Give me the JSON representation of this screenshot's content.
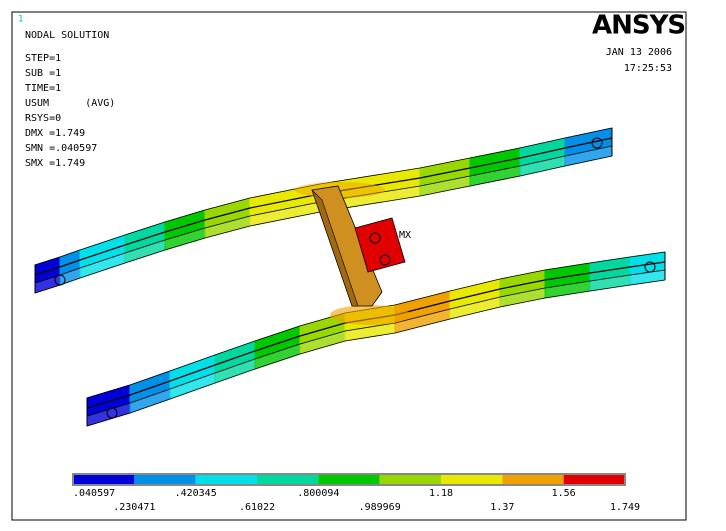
{
  "window_number": "1",
  "logo": "ANSYS",
  "date": "JAN 13 2006",
  "time": "17:25:53",
  "info": [
    "NODAL SOLUTION",
    "STEP=1",
    "SUB =1",
    "TIME=1",
    "USUM      (AVG)",
    "RSYS=0",
    "DMX =1.749",
    "SMN =.040597",
    "SMX =1.749"
  ],
  "annotation": "MX",
  "legend": {
    "colors": [
      "#0000d8",
      "#0090e8",
      "#00e0e8",
      "#00d8a0",
      "#00c800",
      "#98d800",
      "#e8e800",
      "#f0a000",
      "#e00000"
    ],
    "labels": [
      ".040597",
      ".230471",
      ".420345",
      ".61022",
      ".800094",
      ".989969",
      "1.18",
      "1.37",
      "1.56",
      "1.749"
    ]
  }
}
